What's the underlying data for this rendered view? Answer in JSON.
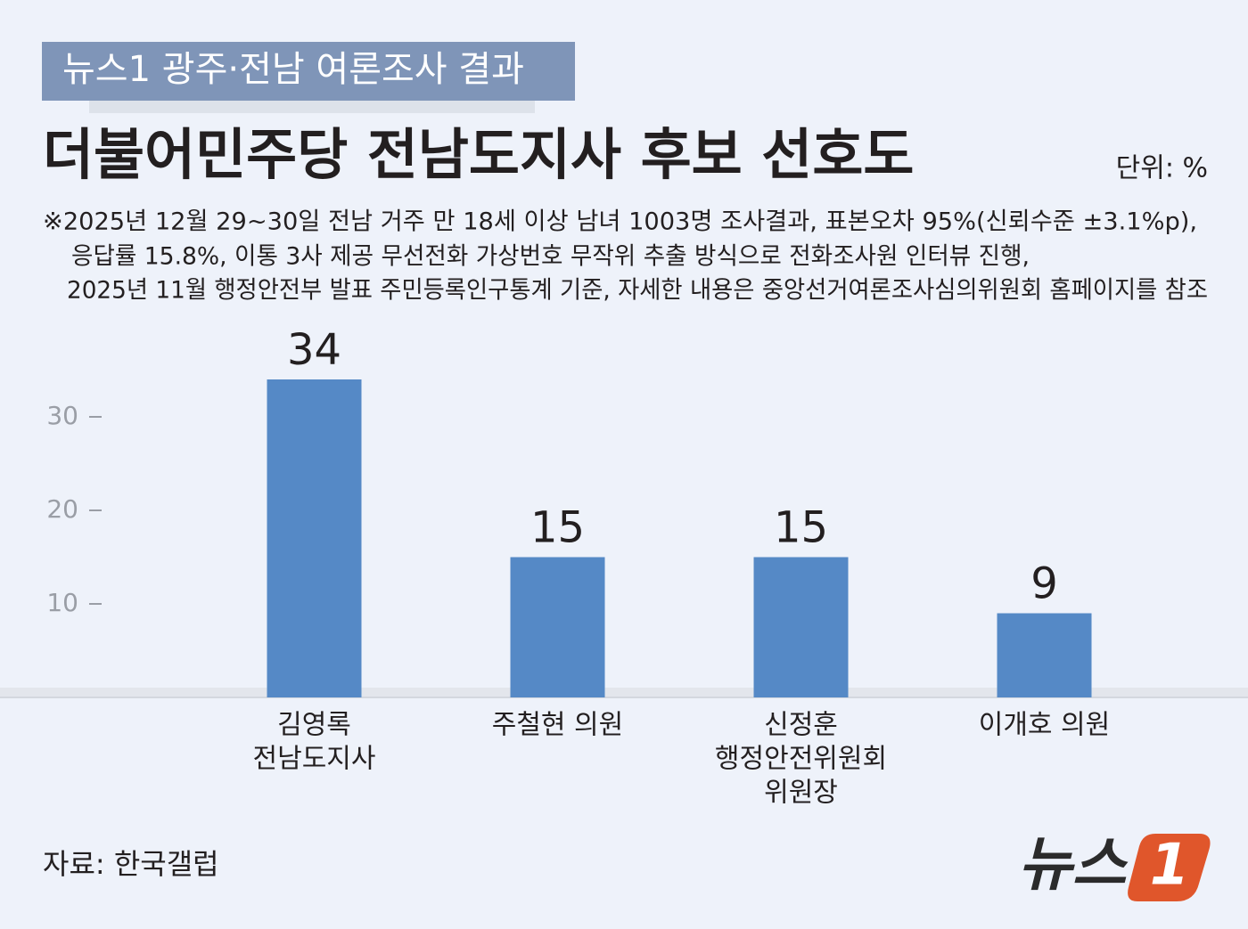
{
  "banner": "뉴스1 광주·전남 여론조사 결과",
  "chart_data": {
    "type": "bar",
    "title": "더불어민주당 전남도지사 후보 선호도",
    "unit": "단위: %",
    "note": [
      "※2025년 12월 29~30일 전남 거주 만 18세 이상 남녀 1003명 조사결과, 표본오차 95%(신뢰수준 ±3.1%p),",
      "응답률  15.8%, 이통 3사 제공 무선전화 가상번호 무작위 추출 방식으로 전화조사원 인터뷰 진행,",
      "2025년 11월 행정안전부 발표 주민등록인구통계 기준, 자세한 내용은 중앙선거여론조사심의위원회 홈페이지를 참조"
    ],
    "categories": [
      [
        "김영록",
        "전남도지사"
      ],
      [
        "주철현 의원"
      ],
      [
        "신정훈",
        "행정안전위원회",
        "위원장"
      ],
      [
        "이개호 의원"
      ]
    ],
    "values": [
      34,
      15,
      15,
      9
    ],
    "color": "#5589c6",
    "ylim": [
      0,
      35
    ],
    "yticks": [
      10,
      20,
      30
    ],
    "source": "자료: 한국갤럽"
  },
  "logo": {
    "text": "뉴스",
    "number": "1"
  }
}
